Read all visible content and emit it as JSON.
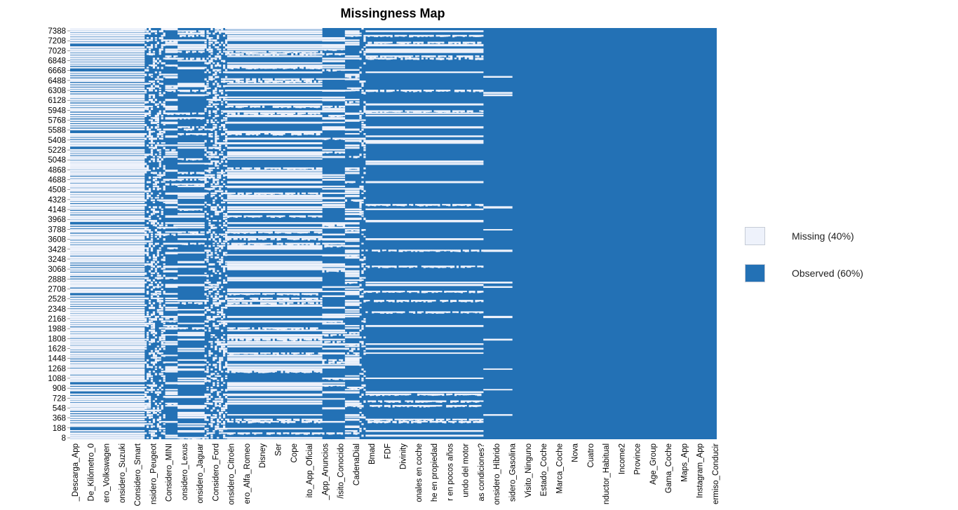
{
  "chart_data": {
    "type": "heatmap",
    "title": "Missingness Map",
    "colors": {
      "missing": "#eef2fb",
      "observed": "#2371b5"
    },
    "legend": {
      "placement": "right",
      "items": [
        {
          "label": "Missing (40%)",
          "state": "missing",
          "percent": 40
        },
        {
          "label": "Observed (60%)",
          "state": "observed",
          "percent": 60
        }
      ]
    },
    "y_ticks": [
      "7388",
      "7208",
      "7028",
      "6848",
      "6668",
      "6488",
      "6308",
      "6128",
      "5948",
      "5768",
      "5588",
      "5408",
      "5228",
      "5048",
      "4868",
      "4688",
      "4508",
      "4328",
      "4148",
      "3968",
      "3788",
      "3608",
      "3428",
      "3248",
      "3068",
      "2888",
      "2708",
      "2528",
      "2348",
      "2168",
      "1988",
      "1808",
      "1628",
      "1448",
      "1268",
      "1088",
      "908",
      "728",
      "548",
      "368",
      "188",
      "8"
    ],
    "x_labels": [
      "_Descarga_App",
      "De_Kilómetro_0",
      "ero_Volkswagen",
      "onsidero_Suzuki",
      "Considero_Smart",
      "nsidero_Peugeot",
      "Considero_MINI",
      "onsidero_Lexus",
      "onsidero_Jaguar",
      "Considero_Ford",
      "onsidero_Citroën",
      "ero_Alfa_Romeo",
      "Disney",
      "Ser",
      "Cope",
      "ito_App_Oficial",
      "_App_Anuncios",
      "/isito_Conocido",
      "CadenaDial",
      "Bmad",
      "FDF",
      "Divinity",
      "onales en coche",
      "he en propiedad",
      "r en pocos años",
      "undo del motor",
      "as condiciones?",
      "onsidero_Híbrido",
      "sidero_Gasolina",
      "Visito_Ninguno",
      "Estado_Coche",
      "Marca_Coche",
      "Nova",
      "Cuatro",
      "nductor_Habitual",
      "Income2",
      "Province",
      "Age_Group",
      "Gama_Coche",
      "Maps_App",
      "Instagram_App",
      "ermiso_Conducir"
    ],
    "column_missing_rate": [
      0.96,
      0.96,
      0.96,
      0.96,
      0.96,
      0.96,
      0.96,
      0.96,
      0.96,
      0.96,
      0.96,
      0.96,
      0.96,
      0.96,
      0.96,
      0.96,
      0.96,
      0.96,
      0.96,
      0.96,
      0.96,
      0.96,
      0.96,
      0.96,
      0.96,
      0.96,
      0.96,
      0.96,
      0.96,
      0.96,
      0.96,
      0.96,
      0.96,
      0.96,
      0.96,
      0.96,
      0.42,
      0.45,
      0.48,
      0.5,
      0.47,
      0.46,
      0.48,
      0.49,
      0.45,
      0.43,
      0.42,
      0.42,
      0.42,
      0.42,
      0.42,
      0.42,
      0.37,
      0.37,
      0.37,
      0.37,
      0.37,
      0.37,
      0.37,
      0.37,
      0.37,
      0.37,
      0.37,
      0.37,
      0.37,
      0.44,
      0.48,
      0.47,
      0.45,
      0.46,
      0.49,
      0.5,
      0.46,
      0.44,
      0.45,
      0.47,
      0.58,
      0.58,
      0.58,
      0.58,
      0.58,
      0.58,
      0.58,
      0.58,
      0.58,
      0.58,
      0.58,
      0.58,
      0.58,
      0.58,
      0.58,
      0.58,
      0.58,
      0.58,
      0.58,
      0.58,
      0.58,
      0.58,
      0.58,
      0.58,
      0.58,
      0.58,
      0.58,
      0.58,
      0.58,
      0.58,
      0.58,
      0.58,
      0.58,
      0.58,
      0.58,
      0.58,
      0.58,
      0.58,
      0.58,
      0.58,
      0.58,
      0.58,
      0.58,
      0.58,
      0.58,
      0.58,
      0.44,
      0.44,
      0.44,
      0.44,
      0.44,
      0.44,
      0.44,
      0.44,
      0.44,
      0.44,
      0.44,
      0.51,
      0.51,
      0.51,
      0.51,
      0.51,
      0.51,
      0.51,
      0.25,
      0.27,
      0.3,
      0.18,
      0.18,
      0.18,
      0.18,
      0.18,
      0.18,
      0.18,
      0.18,
      0.18,
      0.18,
      0.18,
      0.18,
      0.18,
      0.18,
      0.18,
      0.18,
      0.18,
      0.18,
      0.18,
      0.18,
      0.18,
      0.18,
      0.18,
      0.18,
      0.18,
      0.18,
      0.18,
      0.18,
      0.18,
      0.18,
      0.18,
      0.18,
      0.18,
      0.18,
      0.18,
      0.18,
      0.18,
      0.18,
      0.18,
      0.18,
      0.18,
      0.18,
      0.18,
      0.18,
      0.18,
      0.18,
      0.18,
      0.18,
      0.18,
      0.18,
      0.18,
      0.18,
      0.18,
      0.18,
      0.18,
      0.18,
      0.18,
      0.06,
      0.06,
      0.06,
      0.06,
      0.06,
      0.06,
      0.06,
      0.06,
      0.06,
      0.06,
      0.06,
      0.06,
      0.06,
      0.06,
      0.0,
      0.0,
      0.0,
      0.0,
      0.0,
      0.0,
      0.0,
      0.0,
      0.0,
      0.0,
      0.0,
      0.0,
      0.0,
      0.0,
      0.0,
      0.0,
      0.0,
      0.0,
      0.0,
      0.0,
      0.0,
      0.0,
      0.0,
      0.0,
      0.0,
      0.0,
      0.0,
      0.0,
      0.0,
      0.0,
      0.0,
      0.0,
      0.0,
      0.0,
      0.0,
      0.0,
      0.0,
      0.0,
      0.0,
      0.0,
      0.0,
      0.0,
      0.0,
      0.0,
      0.0,
      0.0,
      0.0,
      0.0,
      0.0,
      0.0,
      0.0,
      0.0,
      0.0,
      0.0,
      0.0,
      0.0,
      0.0,
      0.0,
      0.0,
      0.0,
      0.0,
      0.0,
      0.0,
      0.0,
      0.0,
      0.0,
      0.0,
      0.0,
      0.0,
      0.0,
      0.0,
      0.0,
      0.0,
      0.0,
      0.0,
      0.0,
      0.0,
      0.0,
      0.0,
      0.0,
      0.0,
      0.0,
      0.0,
      0.0,
      0.0,
      0.0,
      0.0,
      0.0,
      0.0,
      0.0,
      0.0,
      0.0,
      0.0,
      0.0,
      0.0,
      0.0,
      0.0,
      0.0,
      0.0
    ]
  }
}
